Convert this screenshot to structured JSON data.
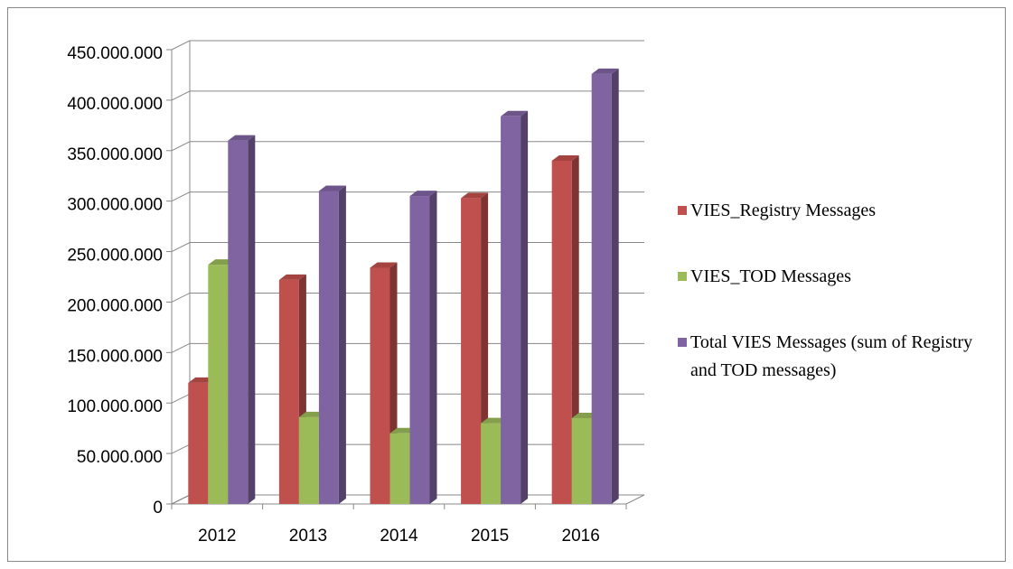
{
  "chart_data": {
    "type": "bar3d",
    "categories": [
      "2012",
      "2013",
      "2014",
      "2015",
      "2016"
    ],
    "series": [
      {
        "name": "VIES_Registry Messages",
        "color": "#c0504d",
        "values": [
          120000000,
          222000000,
          234000000,
          303000000,
          340000000
        ]
      },
      {
        "name": "VIES_TOD Messages",
        "color": "#9bbb59",
        "values": [
          237000000,
          86000000,
          70000000,
          80000000,
          85000000
        ]
      },
      {
        "name": "Total VIES Messages (sum of Registry and TOD messages)",
        "color": "#8064a2",
        "values": [
          360000000,
          310000000,
          305000000,
          384000000,
          426000000
        ]
      }
    ],
    "ylim": [
      0,
      450000000
    ],
    "yticks": [
      0,
      {
        "value": 50000000,
        "label": "50.000.000"
      },
      {
        "value": 100000000,
        "label": "100.000.000"
      },
      {
        "value": 150000000,
        "label": "150.000.000"
      },
      {
        "value": 200000000,
        "label": "200.000.000"
      },
      {
        "value": 250000000,
        "label": "250.000.000"
      },
      {
        "value": 300000000,
        "label": "300.000.000"
      },
      {
        "value": 350000000,
        "label": "350.000.000"
      },
      {
        "value": 400000000,
        "label": "400.000.000"
      },
      {
        "value": 450000000,
        "label": "450.000.000"
      }
    ],
    "grid": true,
    "legend": "right"
  }
}
